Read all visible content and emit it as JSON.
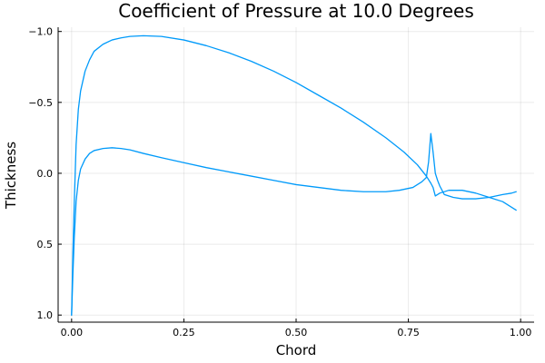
{
  "chart_data": {
    "type": "line",
    "title": "Coefficient of Pressure at 10.0 Degrees",
    "xlabel": "Chord",
    "ylabel": "Thickness",
    "xlim": [
      -0.03,
      1.03
    ],
    "ylim": [
      -1.03,
      1.05
    ],
    "y_inverted": true,
    "grid": true,
    "legend": "none",
    "x_ticks": [
      0.0,
      0.25,
      0.5,
      0.75,
      1.0
    ],
    "x_tick_labels": [
      "0.00",
      "0.25",
      "0.50",
      "0.75",
      "1.00"
    ],
    "y_ticks": [
      -1.0,
      -0.5,
      0.0,
      0.5,
      1.0
    ],
    "y_tick_labels": [
      "−1.0",
      "−0.5",
      "0.0",
      "0.5",
      "1.0"
    ],
    "colors": {
      "series": "#009AFA"
    },
    "series": [
      {
        "x": [
          0.0,
          0.003,
          0.006,
          0.01,
          0.015,
          0.02,
          0.03,
          0.04,
          0.05,
          0.07,
          0.09,
          0.11,
          0.13,
          0.16,
          0.2,
          0.25,
          0.3,
          0.35,
          0.4,
          0.45,
          0.5,
          0.55,
          0.6,
          0.65,
          0.7,
          0.74,
          0.77,
          0.79,
          0.8,
          0.805,
          0.81,
          0.82,
          0.84,
          0.87,
          0.9,
          0.93,
          0.96,
          0.99
        ],
        "y": [
          1.0,
          0.55,
          0.2,
          -0.2,
          -0.45,
          -0.58,
          -0.72,
          -0.8,
          -0.86,
          -0.91,
          -0.94,
          -0.955,
          -0.965,
          -0.97,
          -0.965,
          -0.94,
          -0.9,
          -0.85,
          -0.79,
          -0.72,
          -0.64,
          -0.55,
          -0.46,
          -0.36,
          -0.25,
          -0.15,
          -0.06,
          0.02,
          0.07,
          0.1,
          0.16,
          0.14,
          0.12,
          0.12,
          0.14,
          0.17,
          0.2,
          0.26
        ]
      },
      {
        "x": [
          0.0,
          0.003,
          0.006,
          0.01,
          0.015,
          0.02,
          0.03,
          0.04,
          0.05,
          0.07,
          0.09,
          0.11,
          0.13,
          0.16,
          0.2,
          0.25,
          0.3,
          0.35,
          0.4,
          0.45,
          0.5,
          0.55,
          0.6,
          0.65,
          0.7,
          0.73,
          0.76,
          0.78,
          0.79,
          0.795,
          0.8,
          0.805,
          0.81,
          0.815,
          0.82,
          0.825,
          0.83,
          0.85,
          0.87,
          0.9,
          0.93,
          0.96,
          0.98,
          0.99
        ],
        "y": [
          1.0,
          0.7,
          0.45,
          0.2,
          0.05,
          -0.03,
          -0.1,
          -0.14,
          -0.16,
          -0.175,
          -0.18,
          -0.175,
          -0.165,
          -0.14,
          -0.11,
          -0.075,
          -0.04,
          -0.01,
          0.02,
          0.05,
          0.08,
          0.1,
          0.12,
          0.13,
          0.13,
          0.12,
          0.1,
          0.06,
          0.03,
          -0.08,
          -0.28,
          -0.15,
          0.0,
          0.05,
          0.09,
          0.12,
          0.15,
          0.17,
          0.18,
          0.18,
          0.17,
          0.15,
          0.14,
          0.13
        ]
      }
    ]
  }
}
